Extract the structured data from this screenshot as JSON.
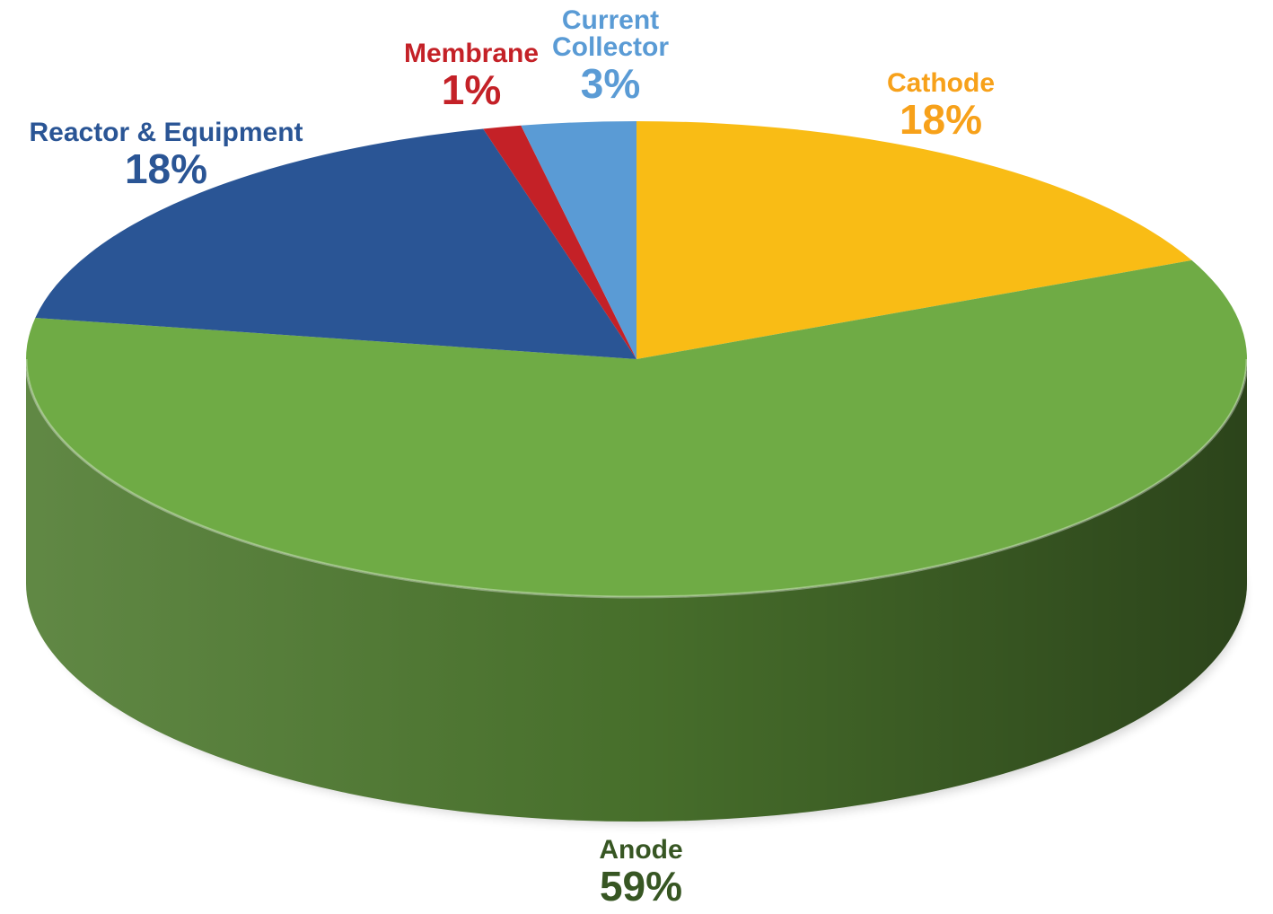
{
  "chart_data": {
    "type": "pie",
    "three_d": true,
    "start_direction": "top, clockwise",
    "slices": [
      {
        "label": "Cathode",
        "value": 18,
        "display": "18%",
        "color": "#f9bc15",
        "text_color": "#f7a11a",
        "side_color": "#b88a0e"
      },
      {
        "label": "Anode",
        "value": 59,
        "display": "59%",
        "color": "#6fab45",
        "text_color": "#375623",
        "side_color": "#4f7b30"
      },
      {
        "label": "Reactor & Equipment",
        "value": 18,
        "display": "18%",
        "color": "#2a5595",
        "text_color": "#2a5595",
        "side_color": "#1d3d6d"
      },
      {
        "label": "Membrane",
        "value": 1,
        "display": "1%",
        "color": "#c42127",
        "text_color": "#c42127",
        "side_color": "#8c171c"
      },
      {
        "label": "Current Collector",
        "value": 3,
        "display": "3%",
        "color": "#5a9bd5",
        "text_color": "#5a9bd5",
        "side_color": "#3f72a0"
      }
    ]
  }
}
